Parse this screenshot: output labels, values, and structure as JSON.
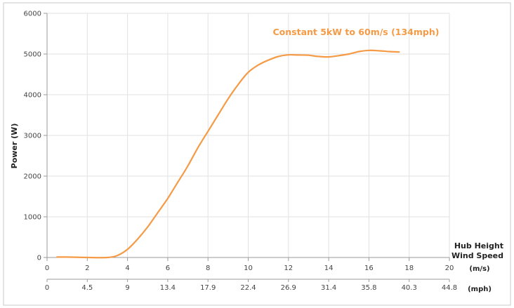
{
  "chart_data": {
    "type": "line",
    "ylabel": "Power (W)",
    "ylim": [
      0,
      6000
    ],
    "y_ticks": [
      "0",
      "1000",
      "2000",
      "3000",
      "4000",
      "5000",
      "6000"
    ],
    "xlim": [
      0,
      20
    ],
    "x_ticks": [
      "0",
      "2",
      "4",
      "6",
      "8",
      "10",
      "12",
      "14",
      "16",
      "18",
      "20"
    ],
    "x_unit": "(m/s)",
    "x2_ticks": [
      "0",
      "4.5",
      "9",
      "13.4",
      "17.9",
      "22.4",
      "26.9",
      "31.4",
      "35.8",
      "40.3",
      "44.8"
    ],
    "x2_unit": "(mph)",
    "xlabel_line1": "Hub Height",
    "xlabel_line2": "Wind Speed",
    "annotation": "Constant 5kW to 60m/s (134mph)",
    "grid": true,
    "colors": {
      "line": "#f59a45",
      "annotation": "#f59a45",
      "grid": "#e2e2e2",
      "axis": "#9a9a9a"
    },
    "series": [
      {
        "x": [
          0.5,
          1,
          2,
          3,
          3.5,
          4,
          4.5,
          5,
          5.5,
          6,
          6.5,
          7,
          7.5,
          8,
          8.5,
          9,
          9.5,
          10,
          10.5,
          11,
          11.5,
          12,
          12.5,
          13,
          13.5,
          14,
          14.5,
          15,
          15.5,
          16,
          16.5,
          17,
          17.5
        ],
        "values": [
          10,
          10,
          0,
          0,
          50,
          200,
          450,
          750,
          1100,
          1450,
          1850,
          2250,
          2700,
          3100,
          3500,
          3900,
          4250,
          4550,
          4730,
          4850,
          4940,
          4980,
          4975,
          4970,
          4940,
          4930,
          4960,
          5000,
          5060,
          5090,
          5080,
          5060,
          5050
        ]
      }
    ]
  }
}
